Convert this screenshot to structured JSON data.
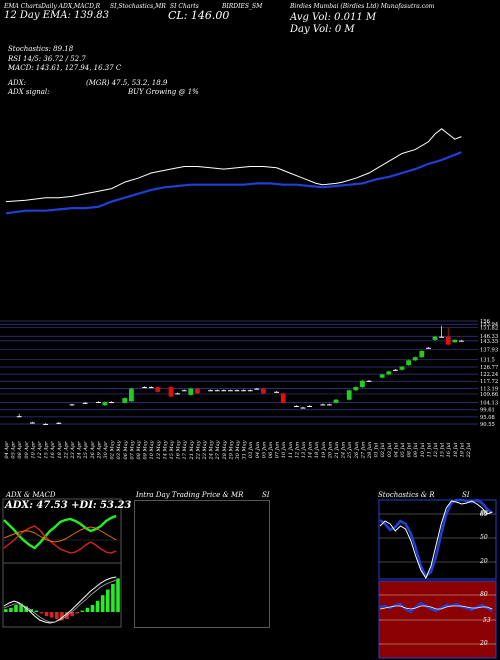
{
  "header": {
    "line1_a": "EMA ChartsDaily ADX,MACD,R",
    "line1_b": "SI,Stochastics,MR",
    "line1_c": "SI Charts",
    "line1_d": "BIRDIES_SM",
    "line1_e": "Birdies Mumbai (Birdies Ltd) Munafasutra.com",
    "line2_a": "12 Day EMA: 139.83",
    "close_label": "CL: 146.00",
    "avg_vol": "Avg Vol: 0.011 M",
    "day_vol": "Day Vol: 0   M",
    "stoch": "Stochastics: 89.18",
    "rsi": "RSI 14/5: 36.72 / 52.7",
    "macd": "MACD: 143.61, 127.94, 16.37 C",
    "adx": "ADX:",
    "adx_vals": "(MGR) 47.5, 53.2, 18.9",
    "adx_signal": "ADX  signal:",
    "adx_signal_val": "BUY Growing @ 1%"
  },
  "colors": {
    "background": "#000000",
    "ema_long": "#1f3fd6",
    "ema_short": "#ffffff",
    "candle_up": "#22cc22",
    "candle_down": "#dd1111",
    "price_grid": "#3a3a88",
    "rsi_panel": "#8b0000",
    "adx_green": "#22ee22",
    "adx_red": "#dd2222",
    "adx_orange": "#e07010"
  },
  "chart_data": {
    "type": "line",
    "dates": [
      "04 Apr",
      "05 Apr",
      "08 Apr",
      "09 Apr",
      "10 Apr",
      "12 Apr",
      "15 Apr",
      "16 Apr",
      "18 Apr",
      "22 Apr",
      "23 Apr",
      "24 Apr",
      "25 Apr",
      "26 Apr",
      "29 Apr",
      "30 Apr",
      "02 May",
      "03 May",
      "06 May",
      "07 May",
      "08 May",
      "09 May",
      "10 May",
      "13 May",
      "14 May",
      "15 May",
      "16 May",
      "17 May",
      "21 May",
      "22 May",
      "23 May",
      "24 May",
      "27 May",
      "28 May",
      "29 May",
      "30 May",
      "31 May",
      "03 Jun",
      "04 Jun",
      "05 Jun",
      "06 Jun",
      "07 Jun",
      "10 Jun",
      "11 Jun",
      "12 Jun",
      "13 Jun",
      "14 Jun",
      "18 Jun",
      "19 Jun",
      "20 Jun",
      "21 Jun",
      "24 Jun",
      "25 Jun",
      "26 Jun",
      "27 Jun",
      "28 Jun",
      "01 Jul",
      "02 Jul",
      "03 Jul",
      "04 Jul",
      "05 Jul",
      "08 Jul",
      "09 Jul",
      "10 Jul",
      "11 Jul",
      "12 Jul",
      "15 Jul",
      "16 Jul",
      "18 Jul",
      "19 Jul",
      "22 Jul"
    ],
    "price_ticks": [
      156,
      153.94,
      151.82,
      146.33,
      143.35,
      137.93,
      131.5,
      126.77,
      122.24,
      117.72,
      113.19,
      109.66,
      104.13,
      99.61,
      95.08,
      90.55
    ],
    "candles": [
      {
        "i": 2,
        "o": 95.5,
        "c": 95.5,
        "h": 97,
        "l": 95
      },
      {
        "i": 4,
        "o": 91.5,
        "c": 91.5,
        "h": 92,
        "l": 91
      },
      {
        "i": 6,
        "o": 90.6,
        "c": 90.6,
        "h": 91,
        "l": 90.5
      },
      {
        "i": 8,
        "o": 91.3,
        "c": 91.3,
        "h": 91.8,
        "l": 91
      },
      {
        "i": 10,
        "o": 103,
        "c": 103,
        "h": 103.5,
        "l": 102.5
      },
      {
        "i": 12,
        "o": 104,
        "c": 104,
        "h": 104.5,
        "l": 103.5
      },
      {
        "i": 14,
        "o": 104.5,
        "c": 104.5,
        "h": 105,
        "l": 104
      },
      {
        "i": 15,
        "o": 102.5,
        "c": 104.5,
        "h": 105,
        "l": 102
      },
      {
        "i": 16,
        "o": 104.5,
        "c": 104.5,
        "h": 105,
        "l": 104
      },
      {
        "i": 18,
        "o": 104,
        "c": 107,
        "h": 107.5,
        "l": 103.5
      },
      {
        "i": 19,
        "o": 105,
        "c": 113,
        "h": 113.5,
        "l": 104.5
      },
      {
        "i": 21,
        "o": 114,
        "c": 114,
        "h": 114.5,
        "l": 113.5
      },
      {
        "i": 22,
        "o": 114,
        "c": 114,
        "h": 114.5,
        "l": 113.5
      },
      {
        "i": 23,
        "o": 114,
        "c": 111,
        "h": 114.5,
        "l": 110.5
      },
      {
        "i": 25,
        "o": 114,
        "c": 108,
        "h": 115,
        "l": 107.5
      },
      {
        "i": 26,
        "o": 110,
        "c": 110,
        "h": 110.5,
        "l": 109.5
      },
      {
        "i": 27,
        "o": 112,
        "c": 112,
        "h": 112.5,
        "l": 111.5
      },
      {
        "i": 28,
        "o": 109,
        "c": 113,
        "h": 113.5,
        "l": 108.5
      },
      {
        "i": 29,
        "o": 113,
        "c": 110,
        "h": 113.5,
        "l": 109.5
      },
      {
        "i": 31,
        "o": 112,
        "c": 112,
        "h": 112.5,
        "l": 111.5
      },
      {
        "i": 32,
        "o": 112,
        "c": 112,
        "h": 112.5,
        "l": 111.5
      },
      {
        "i": 33,
        "o": 112,
        "c": 112,
        "h": 112.5,
        "l": 111.5
      },
      {
        "i": 34,
        "o": 112,
        "c": 112,
        "h": 112.5,
        "l": 111.5
      },
      {
        "i": 35,
        "o": 112,
        "c": 112,
        "h": 112.5,
        "l": 111.5
      },
      {
        "i": 36,
        "o": 112,
        "c": 112,
        "h": 112.5,
        "l": 111.5
      },
      {
        "i": 37,
        "o": 112,
        "c": 112,
        "h": 112.5,
        "l": 111.5
      },
      {
        "i": 38,
        "o": 113,
        "c": 113,
        "h": 113.5,
        "l": 112.5
      },
      {
        "i": 39,
        "o": 113,
        "c": 110,
        "h": 113.5,
        "l": 109.5
      },
      {
        "i": 41,
        "o": 111,
        "c": 111,
        "h": 111.5,
        "l": 110.5
      },
      {
        "i": 42,
        "o": 110,
        "c": 104,
        "h": 110.5,
        "l": 103.5
      },
      {
        "i": 44,
        "o": 102,
        "c": 102,
        "h": 102.5,
        "l": 101.5
      },
      {
        "i": 45,
        "o": 101,
        "c": 101,
        "h": 101.5,
        "l": 100.5
      },
      {
        "i": 46,
        "o": 102,
        "c": 102,
        "h": 102.5,
        "l": 101.5
      },
      {
        "i": 48,
        "o": 103,
        "c": 103,
        "h": 103.5,
        "l": 102.5
      },
      {
        "i": 49,
        "o": 103,
        "c": 103,
        "h": 103.5,
        "l": 102.5
      },
      {
        "i": 50,
        "o": 104,
        "c": 106,
        "h": 106.5,
        "l": 103.5
      },
      {
        "i": 52,
        "o": 106,
        "c": 112,
        "h": 112.5,
        "l": 105.5
      },
      {
        "i": 53,
        "o": 112,
        "c": 114,
        "h": 114.5,
        "l": 111.5
      },
      {
        "i": 54,
        "o": 114,
        "c": 118,
        "h": 118.5,
        "l": 113.5
      },
      {
        "i": 55,
        "o": 118,
        "c": 118,
        "h": 118.5,
        "l": 117.5
      },
      {
        "i": 57,
        "o": 120,
        "c": 122,
        "h": 122.5,
        "l": 119.5
      },
      {
        "i": 58,
        "o": 122,
        "c": 124,
        "h": 124.5,
        "l": 121.5
      },
      {
        "i": 59,
        "o": 125,
        "c": 125,
        "h": 125.5,
        "l": 124.5
      },
      {
        "i": 60,
        "o": 125,
        "c": 127,
        "h": 127.5,
        "l": 124.5
      },
      {
        "i": 61,
        "o": 128,
        "c": 131,
        "h": 131.5,
        "l": 127.5
      },
      {
        "i": 62,
        "o": 131,
        "c": 133,
        "h": 133.5,
        "l": 130.5
      },
      {
        "i": 63,
        "o": 133,
        "c": 137,
        "h": 137.5,
        "l": 132.5
      },
      {
        "i": 64,
        "o": 139,
        "c": 139,
        "h": 139.5,
        "l": 138.5
      },
      {
        "i": 65,
        "o": 144,
        "c": 146,
        "h": 146.5,
        "l": 143.5
      },
      {
        "i": 66,
        "o": 146,
        "c": 146,
        "h": 153,
        "l": 145.5
      },
      {
        "i": 67,
        "o": 146,
        "c": 141,
        "h": 152,
        "l": 140.5
      },
      {
        "i": 68,
        "o": 142.5,
        "c": 144,
        "h": 144.5,
        "l": 142
      },
      {
        "i": 69,
        "o": 143.5,
        "c": 143.5,
        "h": 144,
        "l": 143
      }
    ],
    "ema_short": [
      [
        0,
        0.18
      ],
      [
        3,
        0.19
      ],
      [
        6,
        0.21
      ],
      [
        8,
        0.21
      ],
      [
        10,
        0.22
      ],
      [
        12,
        0.24
      ],
      [
        14,
        0.26
      ],
      [
        16,
        0.28
      ],
      [
        18,
        0.33
      ],
      [
        20,
        0.36
      ],
      [
        22,
        0.4
      ],
      [
        24,
        0.42
      ],
      [
        26,
        0.44
      ],
      [
        27,
        0.45
      ],
      [
        29,
        0.45
      ],
      [
        31,
        0.44
      ],
      [
        33,
        0.43
      ],
      [
        35,
        0.44
      ],
      [
        37,
        0.45
      ],
      [
        39,
        0.45
      ],
      [
        41,
        0.44
      ],
      [
        43,
        0.4
      ],
      [
        45,
        0.36
      ],
      [
        47,
        0.32
      ],
      [
        48,
        0.31
      ],
      [
        50,
        0.32
      ],
      [
        51,
        0.33
      ],
      [
        53,
        0.36
      ],
      [
        55,
        0.4
      ],
      [
        57,
        0.46
      ],
      [
        59,
        0.52
      ],
      [
        60,
        0.55
      ],
      [
        62,
        0.58
      ],
      [
        64,
        0.64
      ],
      [
        65,
        0.7
      ],
      [
        66,
        0.74
      ],
      [
        67,
        0.7
      ],
      [
        68,
        0.66
      ],
      [
        69,
        0.68
      ]
    ],
    "ema_long": [
      [
        0,
        0.09
      ],
      [
        3,
        0.11
      ],
      [
        6,
        0.11
      ],
      [
        8,
        0.12
      ],
      [
        10,
        0.13
      ],
      [
        12,
        0.13
      ],
      [
        14,
        0.14
      ],
      [
        16,
        0.18
      ],
      [
        18,
        0.21
      ],
      [
        20,
        0.24
      ],
      [
        22,
        0.27
      ],
      [
        24,
        0.29
      ],
      [
        26,
        0.3
      ],
      [
        28,
        0.31
      ],
      [
        30,
        0.31
      ],
      [
        32,
        0.31
      ],
      [
        34,
        0.31
      ],
      [
        36,
        0.31
      ],
      [
        38,
        0.32
      ],
      [
        40,
        0.32
      ],
      [
        42,
        0.31
      ],
      [
        44,
        0.31
      ],
      [
        46,
        0.3
      ],
      [
        48,
        0.29
      ],
      [
        50,
        0.3
      ],
      [
        52,
        0.31
      ],
      [
        54,
        0.32
      ],
      [
        56,
        0.35
      ],
      [
        58,
        0.37
      ],
      [
        60,
        0.4
      ],
      [
        62,
        0.43
      ],
      [
        64,
        0.47
      ],
      [
        66,
        0.5
      ],
      [
        68,
        0.54
      ],
      [
        69,
        0.56
      ]
    ]
  },
  "panels": {
    "adx_title": "ADX  & MACD",
    "adx_readout": "ADX: 47.53 +DI: 53.23 -DI: 18.90",
    "intraday_title_a": "Intra  Day Trading Price  & MR",
    "intraday_title_b": "SI",
    "stoch_title_a": "Stochastics & R",
    "stoch_title_b": "SI",
    "stoch_ticks": [
      "80",
      "50",
      "20"
    ],
    "rsi_ticks": [
      "80",
      "50",
      "20"
    ],
    "stoch_marker": "89",
    "rsi_marker": "53",
    "stoch_level": 89,
    "rsi_level": 53
  }
}
